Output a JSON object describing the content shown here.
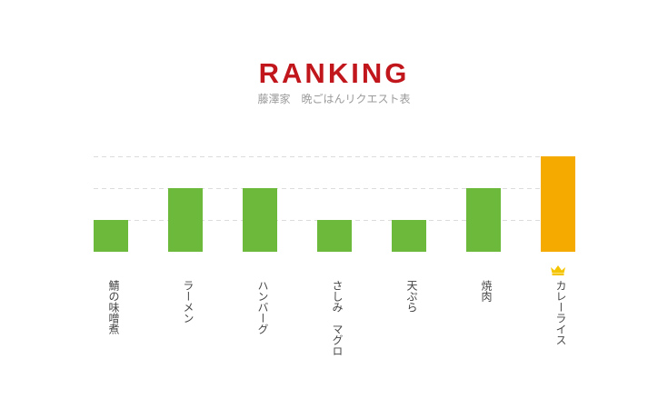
{
  "header": {
    "title": "RANKING",
    "subtitle": "藤澤家　晩ごはんリクエスト表"
  },
  "colors": {
    "bar_default": "#6db93b",
    "bar_top": "#f5aa00",
    "title": "#c0161c",
    "crown": "#f5c400"
  },
  "icons": {
    "top_marker": "crown-icon"
  },
  "chart_data": {
    "type": "bar",
    "title": "RANKING",
    "subtitle": "藤澤家　晩ごはんリクエスト表",
    "xlabel": "",
    "ylabel": "",
    "categories": [
      "鯖の味噌煮",
      "ラーメン",
      "ハンバーグ",
      "さしみ　マグロ",
      "天ぷら",
      "焼肉",
      "カレーライス"
    ],
    "values": [
      1,
      2,
      2,
      1,
      1,
      2,
      3
    ],
    "highlight_index": 6,
    "ylim": [
      0,
      3
    ],
    "grid": true,
    "legend": "none"
  }
}
